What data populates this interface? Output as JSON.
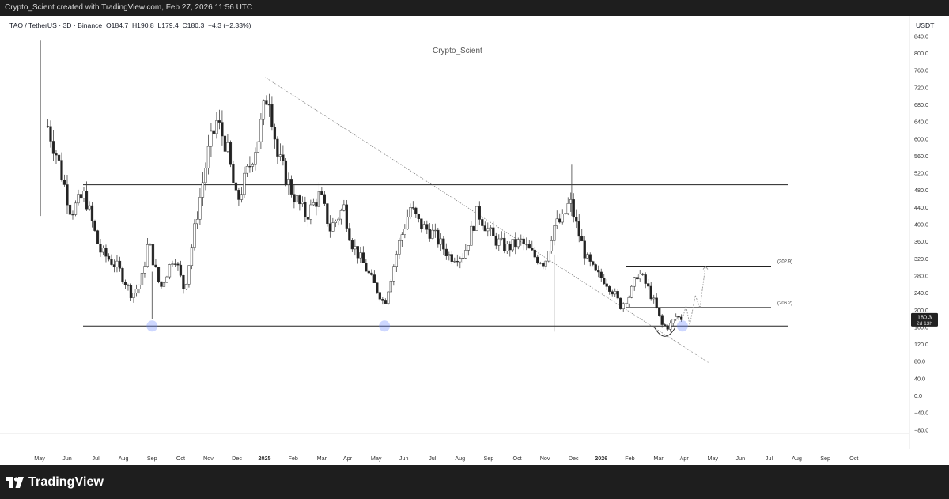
{
  "header": {
    "credit": "Crypto_Scient created with TradingView.com, Feb 27, 2026 11:56 UTC"
  },
  "legend": {
    "pair": "TAO / TetherUS · 3D · Binance",
    "open": "O184.7",
    "high": "H190.8",
    "low": "L179.4",
    "close": "C180.3",
    "change": "−4.3 (−2.33%)"
  },
  "watermark": "Crypto_Scient",
  "currency": "USDT",
  "price_axis": {
    "labels": [
      "840.0",
      "800.0",
      "760.0",
      "720.0",
      "680.0",
      "640.0",
      "600.0",
      "560.0",
      "520.0",
      "480.0",
      "440.0",
      "400.0",
      "360.0",
      "320.0",
      "280.0",
      "240.0",
      "200.0",
      "160.0",
      "120.0",
      "80.0",
      "40.0",
      "0.0",
      "−40.0",
      "−80.0"
    ],
    "current_price": "180.3",
    "countdown": "2d 13h"
  },
  "time_axis": {
    "labels": [
      "May",
      "Jun",
      "Jul",
      "Aug",
      "Sep",
      "Oct",
      "Nov",
      "Dec",
      "2025",
      "Feb",
      "Mar",
      "Apr",
      "May",
      "Jun",
      "Jul",
      "Aug",
      "Sep",
      "Oct",
      "Nov",
      "Dec",
      "2026",
      "Feb",
      "Mar",
      "Apr",
      "May",
      "Jun",
      "Jul",
      "Aug",
      "Sep",
      "Oct"
    ],
    "bold": [
      "2025",
      "2026"
    ]
  },
  "annotations": {
    "upper_target": "(302.9)",
    "lower_target": "(206.2)"
  },
  "colors": {
    "up": "#ffffff",
    "down": "#222222",
    "wick": "#444444",
    "touch_marker": "#6f8dff",
    "background": "#ffffff"
  },
  "icons": {
    "tradingview_logo": "tradingview-logo-icon"
  },
  "footer": {
    "brand": "TradingView"
  },
  "chart_data": {
    "type": "candlestick",
    "title": "TAO / TetherUS · 3D · Binance",
    "ylabel": "USDT",
    "ylim": [
      -80,
      840
    ],
    "interval": "3D",
    "last": {
      "open": 184.7,
      "high": 190.8,
      "low": 179.4,
      "close": 180.3,
      "change": -4.3,
      "change_pct": -2.33
    },
    "levels": [
      {
        "name": "resistance",
        "price": 493
      },
      {
        "name": "support",
        "price": 163
      },
      {
        "name": "target upper",
        "price": 302.9
      },
      {
        "name": "target lower",
        "price": 206.2
      }
    ],
    "trendline": {
      "from": [
        "2024-12-01",
        745
      ],
      "to": [
        "2026-03-27",
        78
      ]
    },
    "anchors": [
      {
        "date": "2024-04-10",
        "price": 630
      },
      {
        "date": "2024-04-20",
        "price": 560
      },
      {
        "date": "2024-05-05",
        "price": 430
      },
      {
        "date": "2024-05-20",
        "price": 470
      },
      {
        "date": "2024-06-05",
        "price": 340
      },
      {
        "date": "2024-06-25",
        "price": 300
      },
      {
        "date": "2024-07-10",
        "price": 235
      },
      {
        "date": "2024-07-20",
        "price": 265
      },
      {
        "date": "2024-07-28",
        "price": 360
      },
      {
        "date": "2024-08-10",
        "price": 250
      },
      {
        "date": "2024-08-25",
        "price": 330
      },
      {
        "date": "2024-09-05",
        "price": 245
      },
      {
        "date": "2024-09-20",
        "price": 440
      },
      {
        "date": "2024-09-30",
        "price": 560
      },
      {
        "date": "2024-10-10",
        "price": 640
      },
      {
        "date": "2024-10-20",
        "price": 590
      },
      {
        "date": "2024-11-01",
        "price": 450
      },
      {
        "date": "2024-11-15",
        "price": 540
      },
      {
        "date": "2024-11-25",
        "price": 610
      },
      {
        "date": "2024-12-05",
        "price": 720
      },
      {
        "date": "2024-12-15",
        "price": 560
      },
      {
        "date": "2025-01-01",
        "price": 470
      },
      {
        "date": "2025-01-15",
        "price": 420
      },
      {
        "date": "2025-01-30",
        "price": 470
      },
      {
        "date": "2025-02-10",
        "price": 390
      },
      {
        "date": "2025-02-25",
        "price": 440
      },
      {
        "date": "2025-03-05",
        "price": 360
      },
      {
        "date": "2025-03-20",
        "price": 300
      },
      {
        "date": "2025-04-10",
        "price": 215
      },
      {
        "date": "2025-04-25",
        "price": 350
      },
      {
        "date": "2025-05-08",
        "price": 440
      },
      {
        "date": "2025-05-18",
        "price": 400
      },
      {
        "date": "2025-06-01",
        "price": 380
      },
      {
        "date": "2025-06-20",
        "price": 325
      },
      {
        "date": "2025-07-05",
        "price": 330
      },
      {
        "date": "2025-07-20",
        "price": 430
      },
      {
        "date": "2025-08-05",
        "price": 370
      },
      {
        "date": "2025-08-20",
        "price": 345
      },
      {
        "date": "2025-09-05",
        "price": 360
      },
      {
        "date": "2025-09-20",
        "price": 325
      },
      {
        "date": "2025-10-01",
        "price": 310
      },
      {
        "date": "2025-10-10",
        "price": 395
      },
      {
        "date": "2025-10-20",
        "price": 410
      },
      {
        "date": "2025-10-28",
        "price": 455
      },
      {
        "date": "2025-11-05",
        "price": 390
      },
      {
        "date": "2025-11-15",
        "price": 320
      },
      {
        "date": "2025-11-25",
        "price": 285
      },
      {
        "date": "2025-12-05",
        "price": 270
      },
      {
        "date": "2025-12-15",
        "price": 240
      },
      {
        "date": "2025-12-22",
        "price": 210
      },
      {
        "date": "2026-01-01",
        "price": 235
      },
      {
        "date": "2026-01-10",
        "price": 290
      },
      {
        "date": "2026-01-20",
        "price": 255
      },
      {
        "date": "2026-01-28",
        "price": 215
      },
      {
        "date": "2026-02-05",
        "price": 165
      },
      {
        "date": "2026-02-12",
        "price": 160
      },
      {
        "date": "2026-02-20",
        "price": 185
      },
      {
        "date": "2026-02-27",
        "price": 180.3
      }
    ],
    "projection": [
      {
        "date": "2026-02-27",
        "price": 180.3
      },
      {
        "date": "2026-03-03",
        "price": 210
      },
      {
        "date": "2026-03-07",
        "price": 165
      },
      {
        "date": "2026-03-13",
        "price": 235
      },
      {
        "date": "2026-03-18",
        "price": 205
      },
      {
        "date": "2026-03-24",
        "price": 302.9
      }
    ],
    "touches": [
      {
        "date": "2024-08-01",
        "price": 163
      },
      {
        "date": "2025-04-10",
        "price": 163
      },
      {
        "date": "2026-02-27",
        "price": 163
      }
    ]
  }
}
